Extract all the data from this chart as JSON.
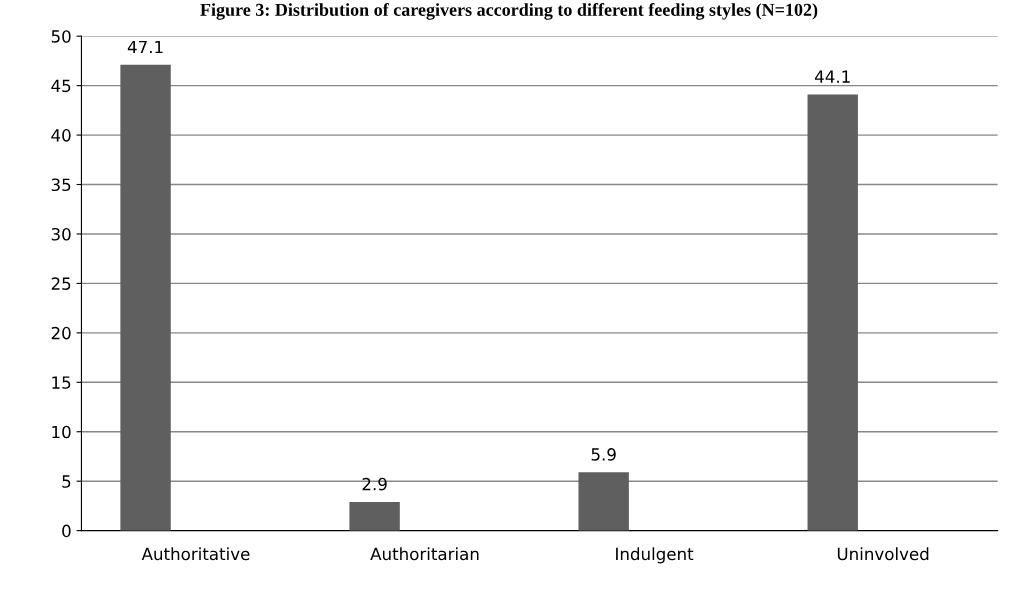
{
  "chart_data": {
    "type": "bar",
    "title": "Figure 3: Distribution of caregivers according to different feeding styles (N=102)",
    "categories": [
      "Authoritative",
      "Authoritarian",
      "Indulgent",
      "Uninvolved"
    ],
    "values": [
      47.1,
      2.9,
      5.9,
      44.1
    ],
    "color": "#5f5f5f",
    "ylim": [
      0,
      50
    ],
    "yticks": [
      0,
      5,
      10,
      15,
      20,
      25,
      30,
      35,
      40,
      45,
      50
    ],
    "grid": "y",
    "data_labels": true
  }
}
